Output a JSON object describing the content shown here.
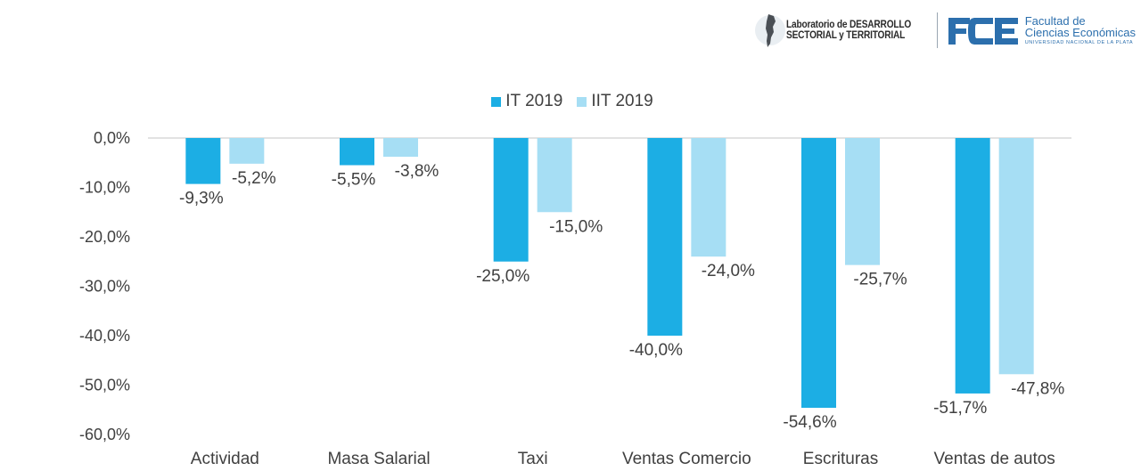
{
  "header": {
    "lab_line1": "Laboratorio de DESARROLLO",
    "lab_line2": "SECTORIAL y TERRITORIAL",
    "fce_line1": "Facultad de",
    "fce_line2": "Ciencias Económicas",
    "fce_sub": "UNIVERSIDAD NACIONAL DE LA PLATA"
  },
  "colors": {
    "series1": "#1caee4",
    "series2": "#a6def4",
    "axis_text": "#404040",
    "grid": "#d9d9d9"
  },
  "chart_data": {
    "type": "bar",
    "title": "",
    "xlabel": "",
    "ylabel": "",
    "legend_position": "top-center",
    "categories": [
      "Actividad",
      "Masa Salarial",
      "Taxi",
      "Ventas Comercio",
      "Escrituras",
      "Ventas de autos"
    ],
    "series": [
      {
        "name": "IT 2019",
        "values": [
          -9.3,
          -5.5,
          -25.0,
          -40.0,
          -54.6,
          -51.7
        ],
        "labels": [
          "-9,3%",
          "-5,5%",
          "-25,0%",
          "-40,0%",
          "-54,6%",
          "-51,7%"
        ]
      },
      {
        "name": "IIT 2019",
        "values": [
          -5.2,
          -3.8,
          -15.0,
          -24.0,
          -25.7,
          -47.8
        ],
        "labels": [
          "-5,2%",
          "-3,8%",
          "-15,0%",
          "-24,0%",
          "-25,7%",
          "-47,8%"
        ]
      }
    ],
    "ylim": [
      -60,
      0
    ],
    "yticks": [
      0,
      -10,
      -20,
      -30,
      -40,
      -50,
      -60
    ],
    "ytick_labels": [
      "0,0%",
      "-10,0%",
      "-20,0%",
      "-30,0%",
      "-40,0%",
      "-50,0%",
      "-60,0%"
    ]
  }
}
